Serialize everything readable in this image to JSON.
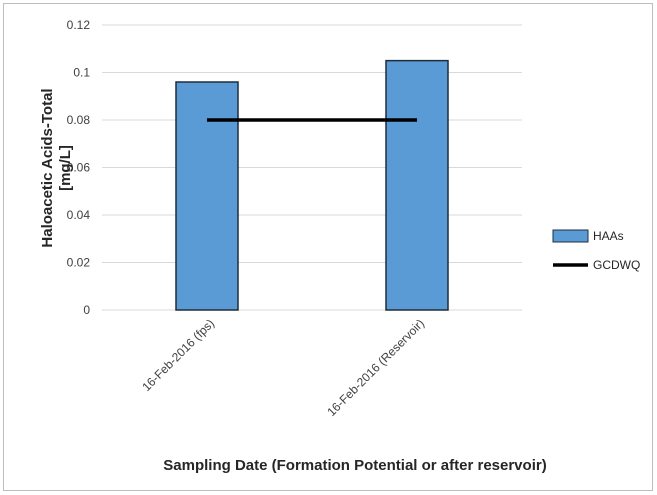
{
  "chart_data": {
    "type": "bar",
    "categories": [
      "16-Feb-2016 (fps)",
      "16-Feb-2016 (Reservoir)"
    ],
    "series": [
      {
        "name": "HAAs",
        "kind": "bar",
        "values": [
          0.096,
          0.105
        ],
        "color": "#5b9bd5"
      },
      {
        "name": "GCDWQ",
        "kind": "line",
        "values": [
          0.08,
          0.08
        ],
        "color": "#000000"
      }
    ],
    "title": "",
    "xlabel": "Sampling Date (Formation Potential or after reservoir)",
    "ylabel_line1": "Haloacetic Acids-Total",
    "ylabel_line2": "[mg/L]",
    "ylim": [
      0,
      0.12
    ],
    "yticks": [
      "0",
      "0.02",
      "0.04",
      "0.06",
      "0.08",
      "0.1",
      "0.12"
    ],
    "grid": true,
    "legend_position": "right"
  }
}
